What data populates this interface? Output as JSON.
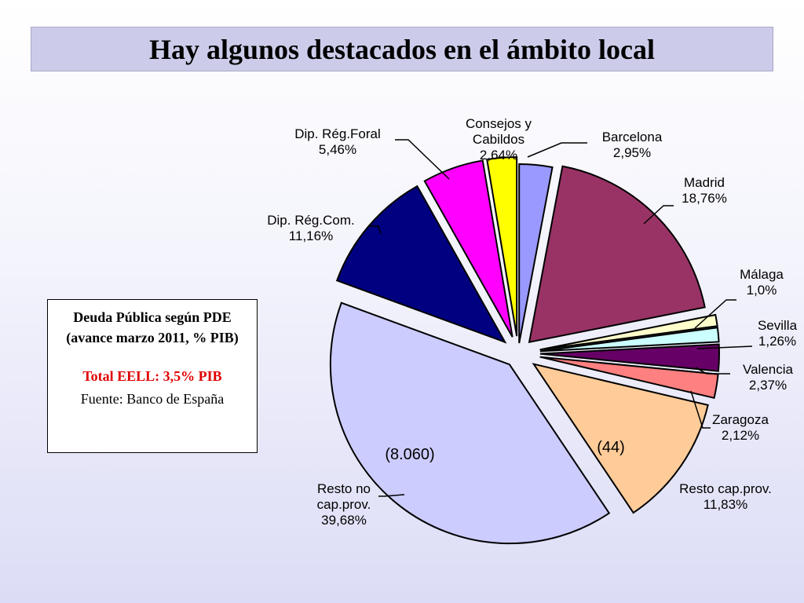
{
  "title": "Hay algunos destacados en el ámbito local",
  "info_box": {
    "heading": "Deuda Pública según PDE (avance marzo 2011, % PIB)",
    "total": "Total EELL: 3,5% PIB",
    "source": "Fuente: Banco de España"
  },
  "chart_data": {
    "type": "pie",
    "title": "",
    "slices": [
      {
        "label_lines": [
          "Barcelona",
          "2,95%"
        ],
        "value": 2.95,
        "color": "#9999ff"
      },
      {
        "label_lines": [
          "Madrid",
          "18,76%"
        ],
        "value": 18.76,
        "color": "#993366"
      },
      {
        "label_lines": [
          "Málaga",
          "1,0%"
        ],
        "value": 1.0,
        "color": "#ffffcc"
      },
      {
        "label_lines": [
          "Sevilla",
          "1,26%"
        ],
        "value": 1.26,
        "color": "#ccffff"
      },
      {
        "label_lines": [
          "Valencia",
          "2,37%"
        ],
        "value": 2.37,
        "color": "#660066"
      },
      {
        "label_lines": [
          "Zaragoza",
          "2,12%"
        ],
        "value": 2.12,
        "color": "#ff8080"
      },
      {
        "label_lines": [
          "Resto cap.prov.",
          "11,83%"
        ],
        "value": 11.83,
        "color": "#ffcc99",
        "inner_label": "(44)"
      },
      {
        "label_lines": [
          "Resto no",
          "cap.prov.",
          "39,68%"
        ],
        "value": 39.68,
        "color": "#ccccff",
        "inner_label": "(8.060)"
      },
      {
        "label_lines": [
          "Dip. Rég.Com.",
          "11,16%"
        ],
        "value": 11.16,
        "color": "#000080"
      },
      {
        "label_lines": [
          "Dip. Rég.Foral",
          "5,46%"
        ],
        "value": 5.46,
        "color": "#ff00ff"
      },
      {
        "label_lines": [
          "Consejos y",
          "Cabildos",
          "2,64%"
        ],
        "value": 2.64,
        "color": "#ffff00"
      }
    ]
  }
}
